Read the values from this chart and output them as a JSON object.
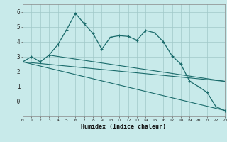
{
  "xlabel": "Humidex (Indice chaleur)",
  "bg_color": "#c8eaea",
  "grid_color": "#a0c8c8",
  "line_color": "#1a6b6b",
  "xmin": 0,
  "xmax": 23,
  "ymin": -1.0,
  "ymax": 6.5,
  "yticks": [
    0,
    1,
    2,
    3,
    4,
    5,
    6
  ],
  "ytick_labels": [
    "-0",
    "1",
    "2",
    "3",
    "4",
    "5",
    "6"
  ],
  "series1_x": [
    0,
    1,
    2,
    3,
    4,
    5,
    6,
    7,
    8,
    9,
    10,
    11,
    12,
    13,
    14,
    15,
    16,
    17,
    18,
    19,
    20,
    21,
    22,
    23
  ],
  "series1_y": [
    2.65,
    3.0,
    2.65,
    3.1,
    3.8,
    4.8,
    5.9,
    5.2,
    4.55,
    3.5,
    4.3,
    4.4,
    4.35,
    4.1,
    4.75,
    4.6,
    4.0,
    3.05,
    2.5,
    1.35,
    1.0,
    0.6,
    -0.35,
    -0.6
  ],
  "line1_x": [
    0,
    23
  ],
  "line1_y": [
    2.65,
    -0.6
  ],
  "line2_x": [
    0,
    23
  ],
  "line2_y": [
    2.65,
    1.35
  ],
  "line3_x": [
    3,
    23
  ],
  "line3_y": [
    3.1,
    1.35
  ]
}
